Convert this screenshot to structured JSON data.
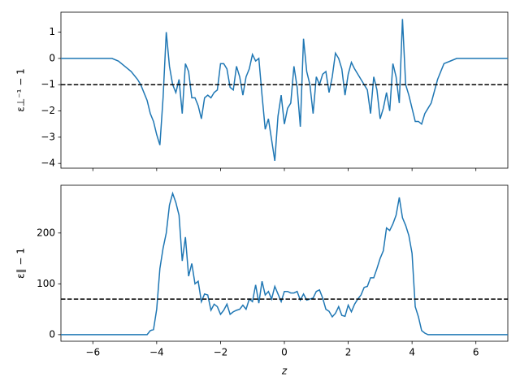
{
  "chart_data": [
    {
      "type": "line",
      "ylabel": "ε⊥⁻¹ − 1",
      "color": "#1f77b4",
      "x": [
        -7,
        -5.4,
        -5.2,
        -5.0,
        -4.8,
        -4.6,
        -4.5,
        -4.4,
        -4.3,
        -4.2,
        -4.1,
        -4.0,
        -3.9,
        -3.8,
        -3.7,
        -3.6,
        -3.5,
        -3.4,
        -3.3,
        -3.2,
        -3.1,
        -3.0,
        -2.9,
        -2.8,
        -2.7,
        -2.6,
        -2.5,
        -2.4,
        -2.3,
        -2.2,
        -2.1,
        -2.0,
        -1.9,
        -1.8,
        -1.7,
        -1.6,
        -1.5,
        -1.4,
        -1.3,
        -1.2,
        -1.1,
        -1.0,
        -0.9,
        -0.8,
        -0.7,
        -0.6,
        -0.5,
        -0.4,
        -0.3,
        -0.2,
        -0.1,
        0.0,
        0.1,
        0.2,
        0.3,
        0.4,
        0.5,
        0.6,
        0.7,
        0.8,
        0.9,
        1.0,
        1.1,
        1.2,
        1.3,
        1.4,
        1.5,
        1.6,
        1.7,
        1.8,
        1.9,
        2.0,
        2.1,
        2.2,
        2.3,
        2.4,
        2.5,
        2.6,
        2.7,
        2.8,
        2.9,
        3.0,
        3.1,
        3.2,
        3.3,
        3.4,
        3.5,
        3.6,
        3.7,
        3.8,
        3.9,
        4.0,
        4.1,
        4.2,
        4.3,
        4.4,
        4.5,
        4.6,
        4.8,
        5.0,
        5.2,
        5.4,
        7
      ],
      "values": [
        0,
        0,
        -0.1,
        -0.3,
        -0.5,
        -0.8,
        -1.0,
        -1.3,
        -1.6,
        -2.1,
        -2.4,
        -2.9,
        -3.3,
        -1.5,
        1.0,
        -0.3,
        -1.0,
        -1.3,
        -0.8,
        -2.1,
        -0.2,
        -0.5,
        -1.5,
        -1.5,
        -1.8,
        -2.3,
        -1.5,
        -1.4,
        -1.5,
        -1.3,
        -1.2,
        -0.2,
        -0.2,
        -0.4,
        -1.1,
        -1.2,
        -0.3,
        -0.7,
        -1.4,
        -0.7,
        -0.4,
        0.15,
        -0.1,
        0.0,
        -1.4,
        -2.7,
        -2.3,
        -3.1,
        -3.9,
        -2.2,
        -1.4,
        -2.5,
        -1.9,
        -1.7,
        -0.3,
        -1.1,
        -2.6,
        0.75,
        -0.5,
        -1.0,
        -2.1,
        -0.7,
        -1.0,
        -0.6,
        -0.5,
        -1.3,
        -0.7,
        0.2,
        0.0,
        -0.4,
        -1.4,
        -0.6,
        -0.15,
        -0.4,
        -0.6,
        -0.8,
        -1.0,
        -1.2,
        -2.1,
        -0.7,
        -1.2,
        -2.3,
        -1.9,
        -1.3,
        -2.0,
        -0.2,
        -0.7,
        -1.7,
        1.5,
        -1.0,
        -1.4,
        -1.9,
        -2.4,
        -2.4,
        -2.5,
        -2.1,
        -1.9,
        -1.7,
        -0.8,
        -0.2,
        -0.1,
        0,
        0
      ],
      "hline": -1,
      "hline_color": "#000000",
      "xlim": [
        -7,
        7
      ],
      "xticks": [
        -6,
        -4,
        -2,
        0,
        2,
        4,
        6
      ],
      "xticklabels": false,
      "ylim": [
        -4.18,
        1.76
      ],
      "yticks": [
        {
          "value": -4,
          "label": "−4"
        },
        {
          "value": -3,
          "label": "−3"
        },
        {
          "value": -2,
          "label": "−2"
        },
        {
          "value": -1,
          "label": "−1"
        },
        0,
        1
      ]
    },
    {
      "type": "line",
      "ylabel": "ε∥ − 1",
      "xlabel": "z",
      "color": "#1f77b4",
      "x": [
        -7,
        -5.4,
        -5.2,
        -5.0,
        -4.8,
        -4.6,
        -4.5,
        -4.4,
        -4.3,
        -4.2,
        -4.1,
        -4.0,
        -3.9,
        -3.8,
        -3.7,
        -3.6,
        -3.5,
        -3.4,
        -3.3,
        -3.2,
        -3.1,
        -3.0,
        -2.9,
        -2.8,
        -2.7,
        -2.6,
        -2.5,
        -2.4,
        -2.3,
        -2.2,
        -2.1,
        -2.0,
        -1.9,
        -1.8,
        -1.7,
        -1.6,
        -1.5,
        -1.4,
        -1.3,
        -1.2,
        -1.1,
        -1.0,
        -0.9,
        -0.8,
        -0.7,
        -0.6,
        -0.5,
        -0.4,
        -0.3,
        -0.2,
        -0.1,
        0.0,
        0.1,
        0.2,
        0.3,
        0.4,
        0.5,
        0.6,
        0.7,
        0.8,
        0.9,
        1.0,
        1.1,
        1.2,
        1.3,
        1.4,
        1.5,
        1.6,
        1.7,
        1.8,
        1.9,
        2.0,
        2.1,
        2.2,
        2.3,
        2.4,
        2.5,
        2.6,
        2.7,
        2.8,
        2.9,
        3.0,
        3.1,
        3.2,
        3.3,
        3.4,
        3.5,
        3.6,
        3.7,
        3.8,
        3.9,
        4.0,
        4.1,
        4.2,
        4.3,
        4.4,
        4.5,
        4.6,
        4.8,
        5.0,
        5.2,
        5.4,
        7
      ],
      "values": [
        0,
        0,
        0,
        0,
        0,
        0,
        0,
        0,
        0,
        8,
        10,
        50,
        130,
        170,
        200,
        255,
        278,
        260,
        235,
        145,
        192,
        115,
        140,
        100,
        105,
        65,
        80,
        78,
        48,
        60,
        55,
        40,
        48,
        60,
        40,
        45,
        48,
        50,
        58,
        50,
        70,
        65,
        98,
        62,
        105,
        78,
        85,
        70,
        95,
        80,
        65,
        85,
        85,
        82,
        82,
        85,
        68,
        80,
        68,
        70,
        72,
        85,
        88,
        72,
        50,
        46,
        35,
        42,
        55,
        38,
        36,
        58,
        45,
        60,
        70,
        78,
        93,
        95,
        112,
        112,
        130,
        150,
        165,
        210,
        205,
        218,
        235,
        270,
        230,
        215,
        195,
        160,
        55,
        35,
        8,
        3,
        0,
        0,
        0,
        0,
        0,
        0,
        0
      ],
      "hline": 70,
      "hline_color": "#000000",
      "xlim": [
        -7,
        7
      ],
      "xticks": [
        {
          "value": -6,
          "label": "−6"
        },
        {
          "value": -4,
          "label": "−4"
        },
        {
          "value": -2,
          "label": "−2"
        },
        0,
        2,
        4,
        6
      ],
      "xticklabels": true,
      "ylim": [
        -13,
        294
      ],
      "yticks": [
        0,
        100,
        200
      ]
    }
  ]
}
